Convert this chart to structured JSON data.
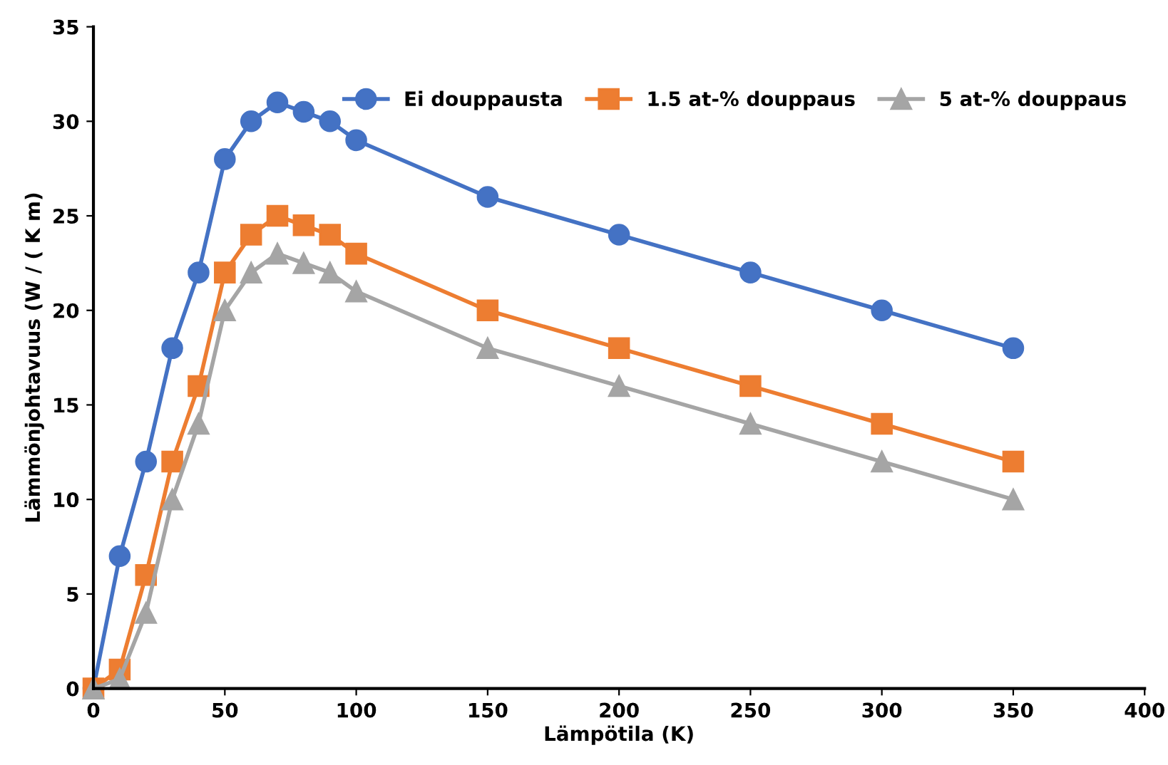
{
  "chart_data": {
    "type": "line",
    "xlabel": "Lämpötila (K)",
    "ylabel": "Lämmönjohtavuus (W / ( K m)",
    "x": [
      0,
      10,
      20,
      30,
      40,
      50,
      60,
      70,
      80,
      90,
      100,
      150,
      200,
      250,
      300,
      350
    ],
    "series": [
      {
        "name": "Ei douppausta",
        "color": "#4472c4",
        "marker": "circle",
        "values": [
          0,
          7,
          12,
          18,
          22,
          28,
          30,
          31,
          30.5,
          30,
          29,
          26,
          24,
          22,
          20,
          18
        ]
      },
      {
        "name": "1.5 at-% douppaus",
        "color": "#ed7d31",
        "marker": "square",
        "values": [
          0,
          1,
          6,
          12,
          16,
          22,
          24,
          25,
          24.5,
          24,
          23,
          20,
          18,
          16,
          14,
          12
        ]
      },
      {
        "name": "5 at-% douppaus",
        "color": "#a5a5a5",
        "marker": "triangle",
        "values": [
          0,
          0.5,
          4,
          10,
          14,
          20,
          22,
          23,
          22.5,
          22,
          21,
          18,
          16,
          14,
          12,
          10
        ]
      }
    ],
    "xlim": [
      0,
      400
    ],
    "xticks": [
      0,
      50,
      100,
      150,
      200,
      250,
      300,
      350,
      400
    ],
    "ylim": [
      0,
      35
    ],
    "yticks": [
      0,
      5,
      10,
      15,
      20,
      25,
      30,
      35
    ],
    "legend": "top right",
    "grid": false,
    "line_style": "solid"
  }
}
